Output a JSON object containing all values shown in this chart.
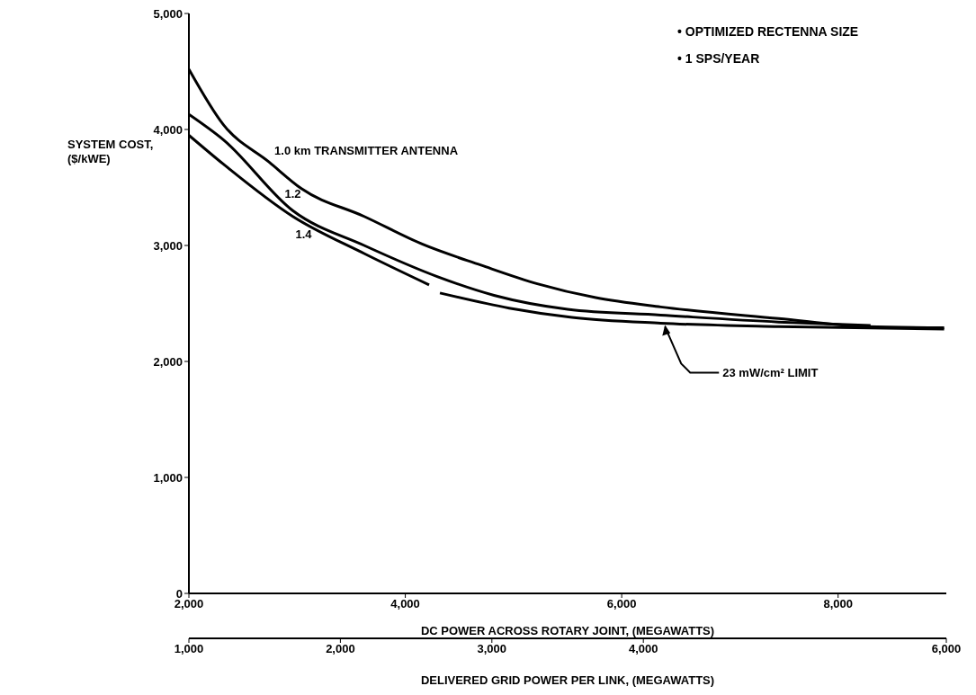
{
  "chart_data": {
    "type": "line",
    "xlabel": "DC POWER ACROSS ROTARY JOINT, (MEGAWATTS)",
    "ylabel": "SYSTEM COST, ($/kWE)",
    "x2label": "DELIVERED GRID POWER PER LINK, (MEGAWATTS)",
    "xlim": [
      2000,
      9000
    ],
    "xticks": [
      {
        "value": 2000,
        "label": "2,000"
      },
      {
        "value": 4000,
        "label": "4,000"
      },
      {
        "value": 6000,
        "label": "6,000"
      },
      {
        "value": 8000,
        "label": "8,000"
      }
    ],
    "x2lim": [
      1000,
      6000
    ],
    "x2ticks": [
      {
        "value": 1000,
        "label": "1,000"
      },
      {
        "value": 2000,
        "label": "2,000"
      },
      {
        "value": 3000,
        "label": "3,000"
      },
      {
        "value": 4000,
        "label": "4,000"
      },
      {
        "value": 6000,
        "label": "6,000"
      }
    ],
    "ylim": [
      0,
      5000
    ],
    "yticks": [
      0,
      {
        "value": 1000,
        "label": "1,000"
      },
      {
        "value": 2000,
        "label": "2,000"
      },
      {
        "value": 3000,
        "label": "3,000"
      },
      {
        "value": 4000,
        "label": "4,000"
      },
      {
        "value": 5000,
        "label": "5,000"
      }
    ],
    "grid": false,
    "legend": false,
    "marker": "none",
    "line_style": "solid",
    "series": [
      {
        "name": "1.0 km TRANSMITTER ANTENNA",
        "color": "#000000",
        "x": [
          2000,
          2320,
          2740,
          3040,
          3620,
          4160,
          4700,
          5220,
          5760,
          6360,
          7450,
          8270,
          8980
        ],
        "values": [
          4520,
          4040,
          3720,
          3490,
          3250,
          3010,
          2830,
          2670,
          2550,
          2470,
          2370,
          2300,
          2290
        ]
      },
      {
        "name": "1.2",
        "color": "#000000",
        "x": [
          2000,
          2320,
          2960,
          3620,
          4300,
          4820,
          5500,
          6360,
          7450,
          8300
        ],
        "values": [
          4130,
          3910,
          3300,
          3000,
          2730,
          2570,
          2450,
          2400,
          2340,
          2310
        ]
      },
      {
        "name": "1.4",
        "color": "#000000",
        "x": [
          2000,
          2320,
          2960,
          3620,
          4220
        ],
        "values": [
          3950,
          3700,
          3250,
          2930,
          2660
        ]
      },
      {
        "color": "#000000",
        "x": [
          4320,
          4960,
          5540,
          6360,
          7450,
          8980
        ],
        "values": [
          2590,
          2460,
          2380,
          2330,
          2300,
          2280
        ]
      }
    ],
    "annotations": [
      "• OPTIMIZED RECTENNA SIZE",
      "• 1 SPS/YEAR",
      {
        "text": "23 mW/cm² LIMIT",
        "x": 6400,
        "y": 2330
      }
    ]
  }
}
